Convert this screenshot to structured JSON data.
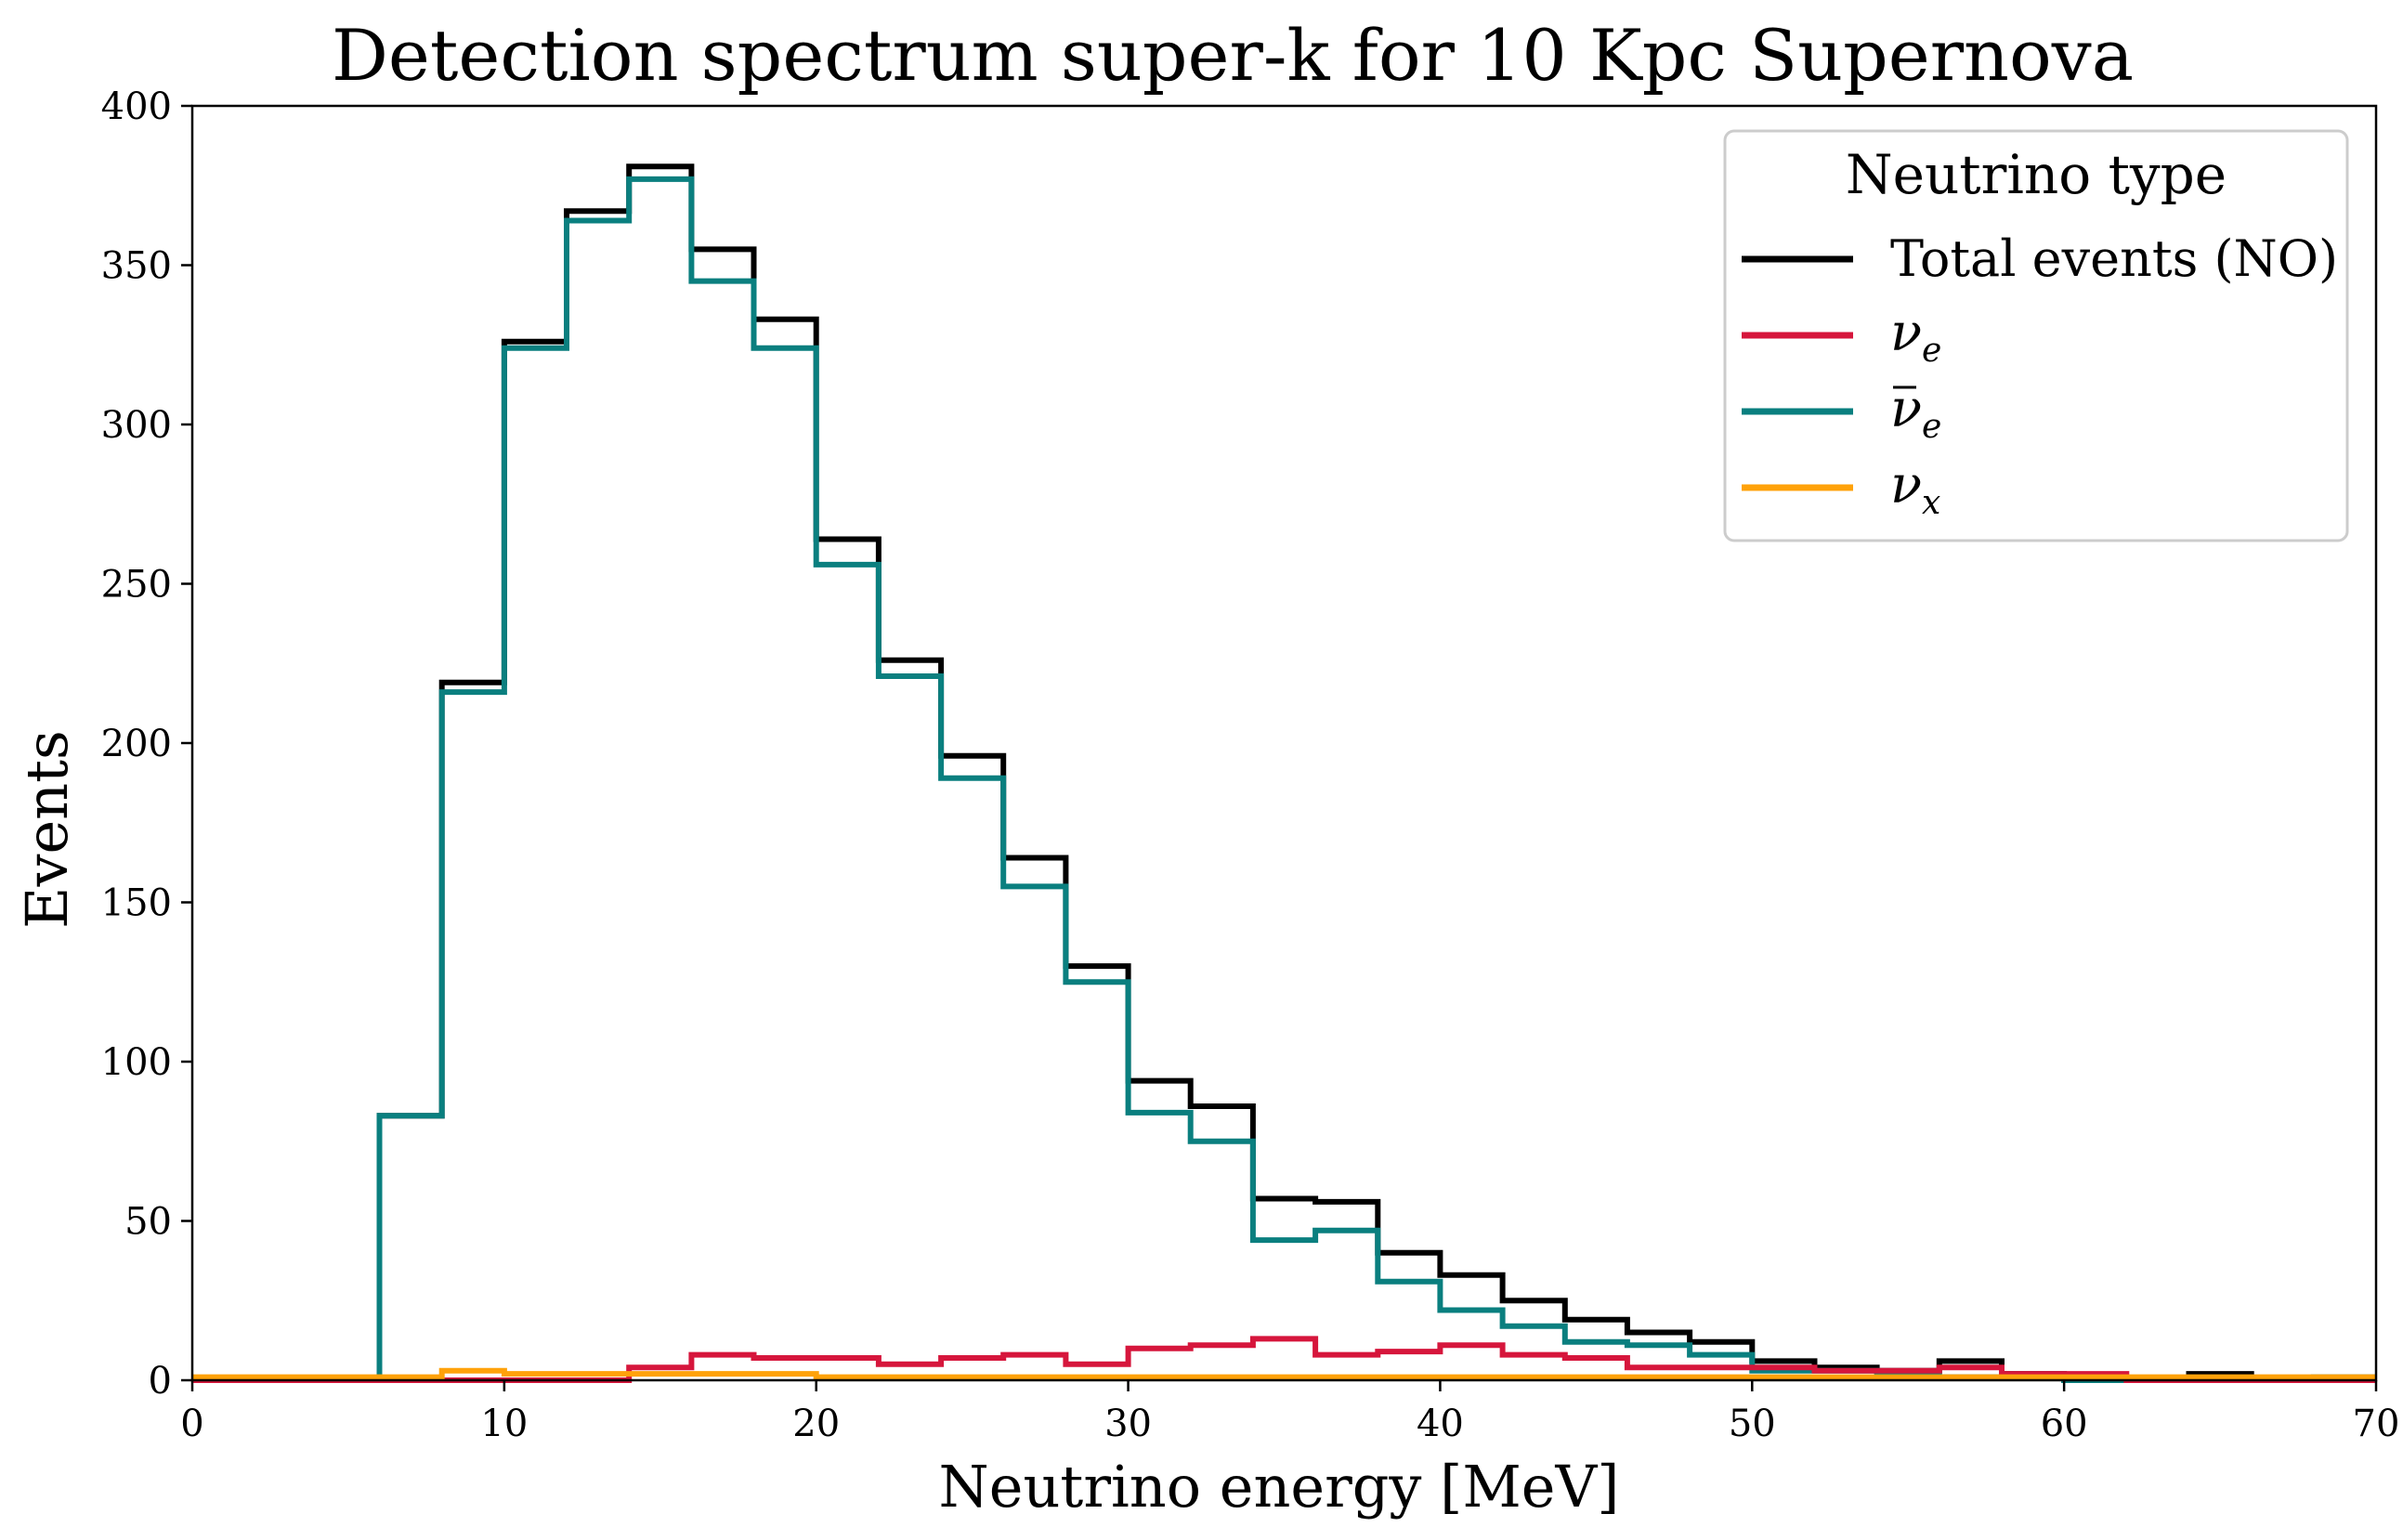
{
  "chart_data": {
    "type": "histogram",
    "title": "Detection spectrum super-k for 10 Kpc Supernova",
    "xlabel": "Neutrino energy [MeV]",
    "ylabel": "Events",
    "xlim": [
      0,
      70
    ],
    "ylim": [
      0,
      400
    ],
    "xticks": [
      0,
      10,
      20,
      30,
      40,
      50,
      60,
      70
    ],
    "yticks": [
      0,
      50,
      100,
      150,
      200,
      250,
      300,
      350,
      400
    ],
    "bin_edges": [
      0,
      2,
      4,
      6,
      8,
      10,
      12,
      14,
      16,
      18,
      20,
      22,
      24,
      26,
      28,
      30,
      32,
      34,
      36,
      38,
      40,
      42,
      44,
      46,
      48,
      50,
      52,
      54,
      56,
      58,
      60,
      62,
      64,
      66,
      68,
      70
    ],
    "legend": {
      "title": "Neutrino type",
      "position": "top-right",
      "entries": [
        {
          "series": "total",
          "label": "Total events (NO)"
        },
        {
          "series": "nue",
          "symbol": "ν",
          "sub": "e",
          "bar": false
        },
        {
          "series": "nuebar",
          "symbol": "ν",
          "sub": "e",
          "bar": true
        },
        {
          "series": "nux",
          "symbol": "ν",
          "sub": "x",
          "bar": false
        }
      ]
    },
    "series": [
      {
        "id": "total",
        "color": "#000000",
        "values": [
          0,
          0,
          0,
          83,
          219,
          326,
          367,
          381,
          355,
          333,
          264,
          226,
          196,
          164,
          130,
          94,
          86,
          57,
          56,
          40,
          33,
          25,
          19,
          15,
          12,
          6,
          4,
          3,
          6,
          2,
          0,
          0,
          2,
          0,
          0
        ]
      },
      {
        "id": "nue",
        "color": "#d6163c",
        "values": [
          0,
          0,
          0,
          0,
          0,
          0,
          0,
          4,
          8,
          7,
          7,
          5,
          7,
          8,
          5,
          10,
          11,
          13,
          8,
          9,
          11,
          8,
          7,
          4,
          4,
          4,
          3,
          3,
          4,
          2,
          2,
          0,
          0,
          0,
          0
        ]
      },
      {
        "id": "nuebar",
        "color": "#0a7f7f",
        "values": [
          0,
          0,
          0,
          83,
          216,
          324,
          364,
          377,
          345,
          324,
          256,
          221,
          189,
          155,
          125,
          84,
          75,
          44,
          47,
          31,
          22,
          17,
          12,
          11,
          8,
          3,
          3,
          2,
          1,
          1,
          0,
          0,
          0,
          0,
          1
        ]
      },
      {
        "id": "nux",
        "color": "#ffa20a",
        "values": [
          1,
          1,
          1,
          1,
          3,
          2,
          2,
          2,
          2,
          2,
          1,
          1,
          1,
          1,
          1,
          1,
          1,
          1,
          1,
          1,
          1,
          1,
          1,
          1,
          1,
          1,
          1,
          1,
          1,
          1,
          1,
          1,
          1,
          1,
          1
        ]
      }
    ]
  }
}
